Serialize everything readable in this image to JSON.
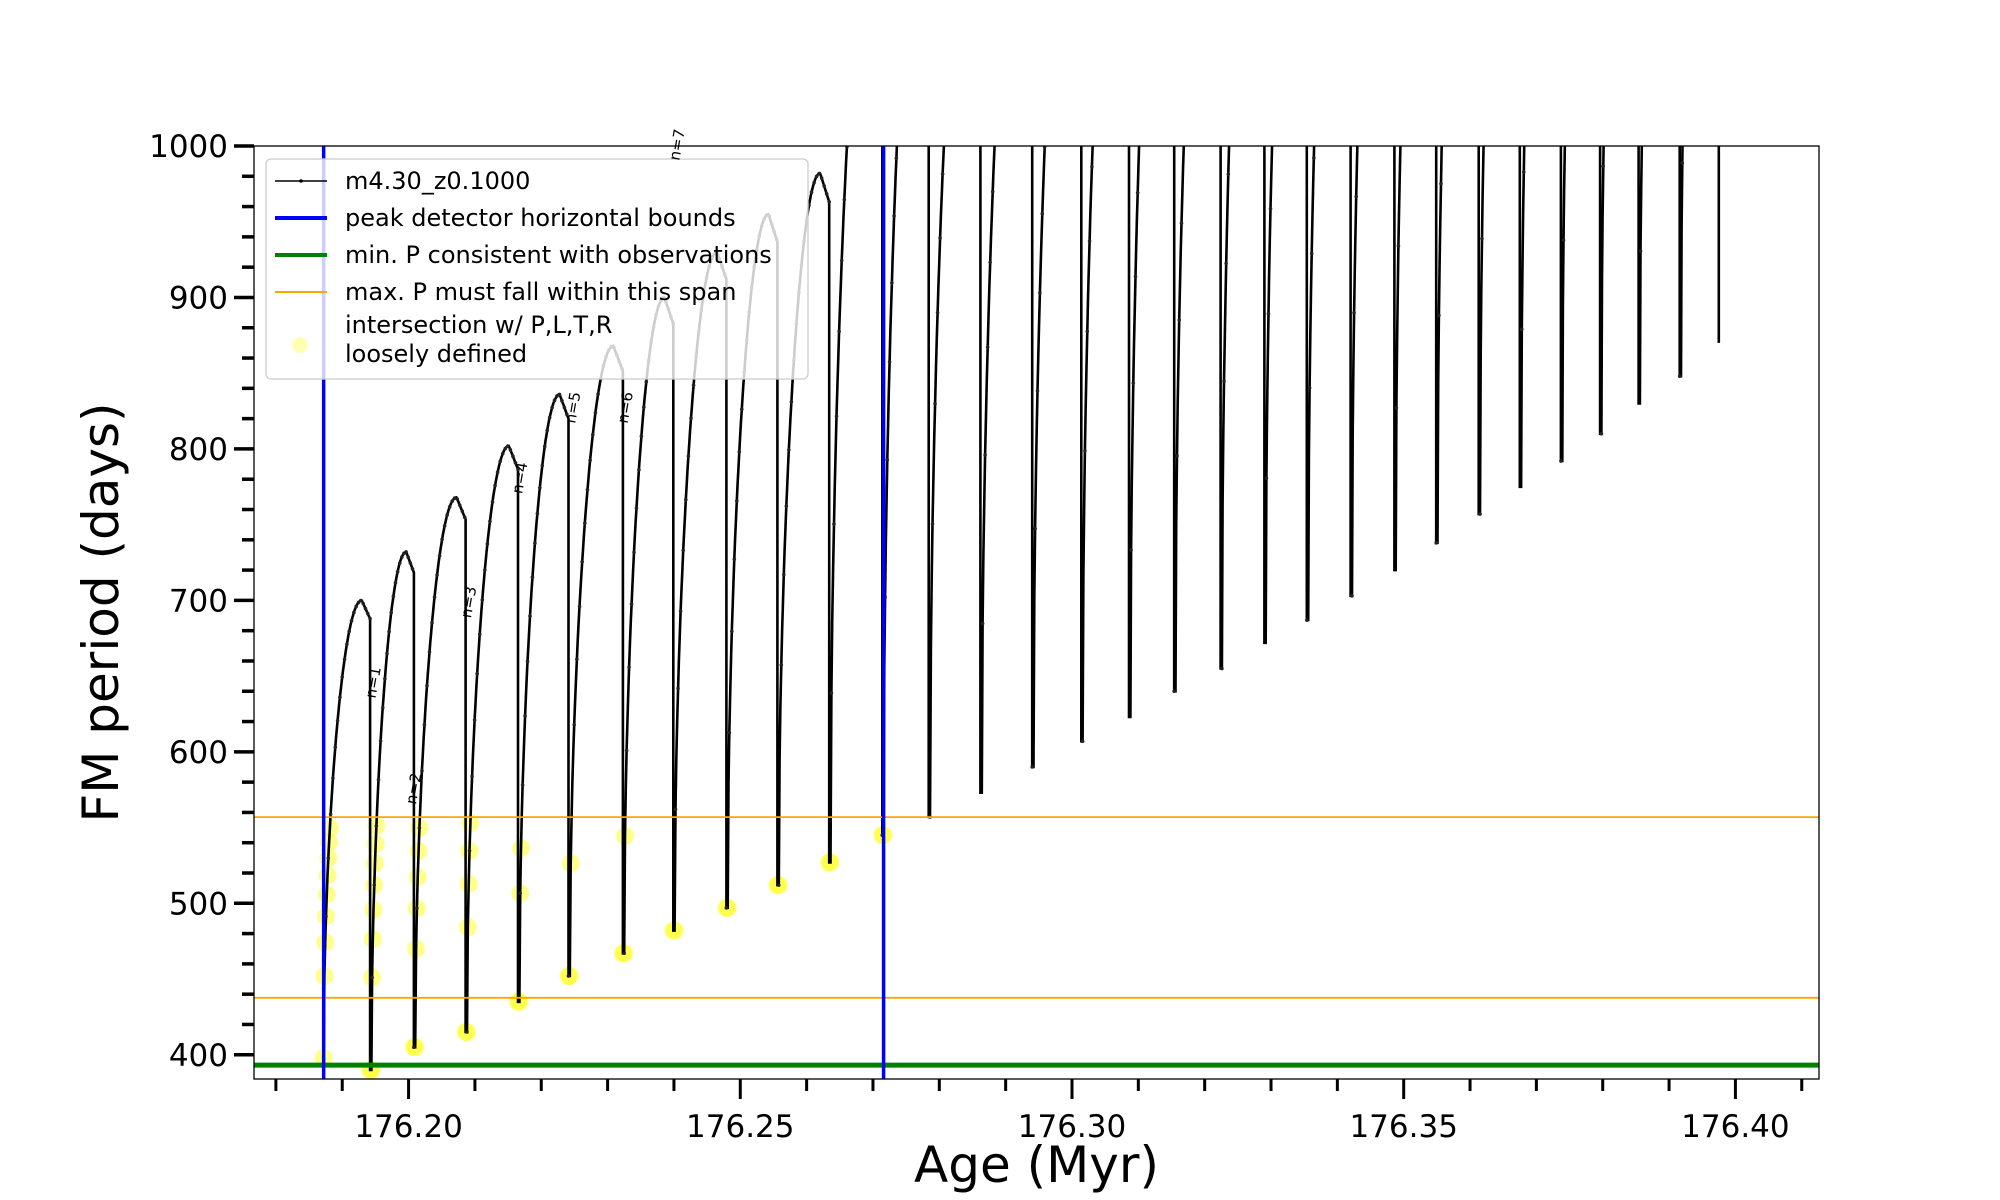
{
  "chart_data": {
    "type": "line",
    "title": "",
    "xlabel": "Age (Myr)",
    "ylabel": "FM period (days)",
    "xlim": [
      176.1767,
      176.4126
    ],
    "ylim": [
      384,
      1000
    ],
    "x_ticks": [
      "176.20",
      "176.25",
      "176.30",
      "176.35",
      "176.40"
    ],
    "x_tick_values": [
      176.2,
      176.25,
      176.3,
      176.35,
      176.4
    ],
    "y_ticks": [
      "400",
      "500",
      "600",
      "700",
      "800",
      "900",
      "1000"
    ],
    "y_tick_values": [
      400,
      500,
      600,
      700,
      800,
      900,
      1000
    ],
    "grid": false,
    "legend_placement": "top-left",
    "legend": [
      {
        "label": "m4.30_z0.1000",
        "color": "#000000",
        "kind": "line-marker"
      },
      {
        "label": "peak detector horizontal bounds",
        "color": "#0000ff",
        "kind": "thick-line"
      },
      {
        "label": "min. P consistent with observations",
        "color": "#008000",
        "kind": "thick-line"
      },
      {
        "label": "max. P must fall within this span",
        "color": "#ffa500",
        "kind": "thin-line"
      },
      {
        "label": "intersection w/ P,L,T,R",
        "label2": "loosely defined",
        "color": "#ffff00",
        "kind": "marker"
      }
    ],
    "series_name": "m4.30_z0.1000",
    "track_start": {
      "age": 176.1872,
      "period": 398
    },
    "cycles": [
      {
        "drop_age": 176.1942,
        "peak_period": 700,
        "min_period": 390
      },
      {
        "drop_age": 176.2008,
        "peak_period": 732,
        "min_period": 405
      },
      {
        "drop_age": 176.2086,
        "peak_period": 768,
        "min_period": 415
      },
      {
        "drop_age": 176.2165,
        "peak_period": 802,
        "min_period": 435
      },
      {
        "drop_age": 176.2241,
        "peak_period": 836,
        "min_period": 452
      },
      {
        "drop_age": 176.2323,
        "peak_period": 868,
        "min_period": 467
      },
      {
        "drop_age": 176.2399,
        "peak_period": 900,
        "min_period": 482
      },
      {
        "drop_age": 176.2479,
        "peak_period": 930,
        "min_period": 497
      },
      {
        "drop_age": 176.2556,
        "peak_period": 955,
        "min_period": 512
      },
      {
        "drop_age": 176.2634,
        "peak_period": 982,
        "min_period": 527
      },
      {
        "drop_age": 176.2714,
        "peak_period": null,
        "min_period": 545
      },
      {
        "drop_age": 176.2784,
        "peak_period": null,
        "min_period": 557
      },
      {
        "drop_age": 176.2862,
        "peak_period": null,
        "min_period": 573
      },
      {
        "drop_age": 176.294,
        "peak_period": null,
        "min_period": 590
      },
      {
        "drop_age": 176.3014,
        "peak_period": null,
        "min_period": 607
      },
      {
        "drop_age": 176.3086,
        "peak_period": null,
        "min_period": 623
      },
      {
        "drop_age": 176.3154,
        "peak_period": null,
        "min_period": 640
      },
      {
        "drop_age": 176.3224,
        "peak_period": null,
        "min_period": 655
      },
      {
        "drop_age": 176.329,
        "peak_period": null,
        "min_period": 672
      },
      {
        "drop_age": 176.3354,
        "peak_period": null,
        "min_period": 687
      },
      {
        "drop_age": 176.342,
        "peak_period": null,
        "min_period": 703
      },
      {
        "drop_age": 176.3486,
        "peak_period": null,
        "min_period": 720
      },
      {
        "drop_age": 176.3549,
        "peak_period": null,
        "min_period": 738
      },
      {
        "drop_age": 176.3613,
        "peak_period": null,
        "min_period": 757
      },
      {
        "drop_age": 176.3675,
        "peak_period": null,
        "min_period": 775
      },
      {
        "drop_age": 176.3737,
        "peak_period": null,
        "min_period": 792
      },
      {
        "drop_age": 176.3796,
        "peak_period": null,
        "min_period": 810
      },
      {
        "drop_age": 176.3854,
        "peak_period": null,
        "min_period": 830
      },
      {
        "drop_age": 176.3916,
        "peak_period": null,
        "min_period": 848
      },
      {
        "drop_age": 176.3975,
        "peak_period": null,
        "min_period": 870
      }
    ],
    "vertical_lines": {
      "label": "peak detector horizontal bounds",
      "ages": [
        176.1872,
        176.2716
      ],
      "color": "#0000ff"
    },
    "min_period_line": {
      "label": "min. P consistent with observations",
      "period": 393.2,
      "color": "#008000"
    },
    "max_period_span": {
      "label": "max. P must fall within this span",
      "periods": [
        437.6,
        556.9
      ],
      "color": "#ffa500"
    },
    "intersection_color": "#ffff00",
    "annotations": [
      {
        "text": "n=1",
        "age": 176.195,
        "period": 635
      },
      {
        "text": "n=2",
        "age": 176.2011,
        "period": 565
      },
      {
        "text": "n=3",
        "age": 176.2094,
        "period": 688
      },
      {
        "text": "n=4",
        "age": 176.2171,
        "period": 770
      },
      {
        "text": "n=5",
        "age": 176.2251,
        "period": 850
      },
      {
        "text": "n=6",
        "age": 176.233,
        "period": 920
      },
      {
        "text": "n=7",
        "age": 176.2408,
        "period": 990
      }
    ]
  }
}
